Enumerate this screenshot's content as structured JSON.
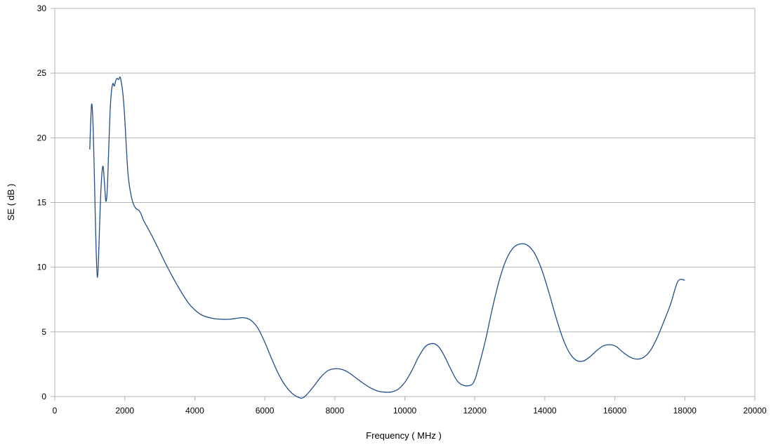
{
  "chart_data": {
    "type": "line",
    "title": "",
    "xlabel": "Frequency ( MHz )",
    "ylabel": "SE ( dB )",
    "xlim": [
      0,
      20000
    ],
    "ylim": [
      0,
      30
    ],
    "xticks": [
      0,
      2000,
      4000,
      6000,
      8000,
      10000,
      12000,
      14000,
      16000,
      18000,
      20000
    ],
    "yticks": [
      0,
      5,
      10,
      15,
      20,
      25,
      30
    ],
    "xtick_labels": [
      "0",
      "2000",
      "4000",
      "6000",
      "8000",
      "10000",
      "12000",
      "14000",
      "16000",
      "18000",
      "20000"
    ],
    "ytick_labels": [
      "0",
      "5",
      "10",
      "15",
      "20",
      "25",
      "30"
    ],
    "grid": "horizontal",
    "legend": "none",
    "line_color": "#1f4e8c",
    "grid_color": "#b3b3b3",
    "series": [
      {
        "x": [
          1000,
          1030,
          1060,
          1100,
          1140,
          1180,
          1220,
          1260,
          1300,
          1340,
          1380,
          1420,
          1460,
          1500,
          1540,
          1580,
          1620,
          1660,
          1700,
          1740,
          1780,
          1820,
          1860,
          1880,
          1900,
          1930,
          1960,
          2000,
          2040,
          2100,
          2200,
          2300,
          2400,
          2450,
          2480,
          2500,
          2520,
          2600,
          2800,
          3000,
          3200,
          3500,
          3800,
          4000,
          4200,
          4500,
          4800,
          5000,
          5200,
          5400,
          5600,
          5800,
          6000,
          6200,
          6400,
          6600,
          6800,
          7000,
          7100,
          7200,
          7400,
          7600,
          7800,
          8000,
          8200,
          8400,
          8600,
          8800,
          9000,
          9200,
          9400,
          9600,
          9800,
          10000,
          10200,
          10400,
          10600,
          10800,
          10950,
          11100,
          11300,
          11500,
          11700,
          11900,
          12000,
          12100,
          12300,
          12500,
          12700,
          12900,
          13100,
          13300,
          13500,
          13700,
          13900,
          14100,
          14300,
          14500,
          14700,
          14900,
          15100,
          15300,
          15500,
          15700,
          15900,
          16050,
          16200,
          16400,
          16600,
          16800,
          17000,
          17200,
          17400,
          17600,
          17800,
          18000
        ],
        "y": [
          19.1,
          21.5,
          22.6,
          20.5,
          16.0,
          11.5,
          9.2,
          11.5,
          14.8,
          17.0,
          17.8,
          16.5,
          15.1,
          16.0,
          19.0,
          22.0,
          23.6,
          24.2,
          24.0,
          24.4,
          24.6,
          24.5,
          24.7,
          24.6,
          24.3,
          23.8,
          23.0,
          21.5,
          19.5,
          17.0,
          15.3,
          14.6,
          14.4,
          14.2,
          14.0,
          13.9,
          13.7,
          13.3,
          12.3,
          11.2,
          10.1,
          8.6,
          7.3,
          6.7,
          6.3,
          6.05,
          5.97,
          5.98,
          6.05,
          6.1,
          5.9,
          5.3,
          4.2,
          2.9,
          1.7,
          0.8,
          0.2,
          -0.1,
          -0.08,
          0.15,
          0.8,
          1.5,
          2.0,
          2.15,
          2.1,
          1.85,
          1.45,
          1.05,
          0.7,
          0.45,
          0.35,
          0.35,
          0.55,
          1.1,
          2.0,
          3.1,
          3.9,
          4.1,
          3.9,
          3.3,
          2.2,
          1.2,
          0.85,
          0.9,
          1.3,
          2.2,
          4.3,
          6.8,
          9.0,
          10.6,
          11.5,
          11.8,
          11.7,
          11.1,
          9.9,
          8.2,
          6.3,
          4.6,
          3.4,
          2.8,
          2.75,
          3.1,
          3.6,
          3.95,
          4.0,
          3.85,
          3.5,
          3.1,
          2.9,
          3.0,
          3.5,
          4.5,
          5.8,
          7.2,
          8.9,
          9.0
        ]
      }
    ]
  }
}
